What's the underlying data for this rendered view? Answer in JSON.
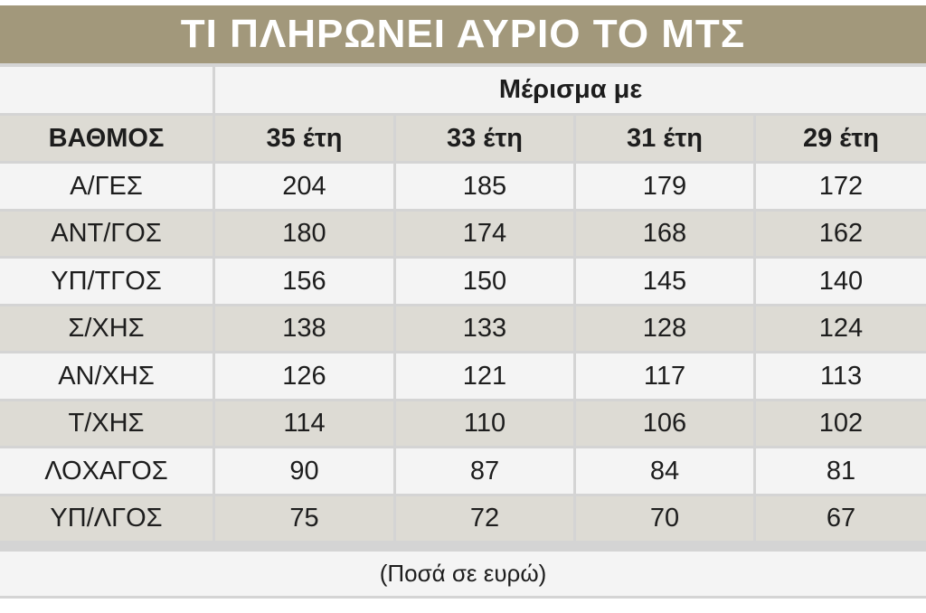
{
  "title": "ΤΙ ΠΛΗΡΩΝΕΙ ΑΥΡΙΟ ΤΟ ΜΤΣ",
  "group_header": "Μέρισμα με",
  "note": "(Ποσά σε ευρώ)",
  "chart_data": {
    "type": "table",
    "title": "ΤΙ ΠΛΗΡΩΝΕΙ ΑΥΡΙΟ ΤΟ ΜΤΣ",
    "row_header": "ΒΑΘΜΟΣ",
    "columns": [
      "35 έτη",
      "33 έτη",
      "31 έτη",
      "29 έτη"
    ],
    "rows": [
      {
        "label": "Α/ΓΕΣ",
        "values": [
          "204",
          "185",
          "179",
          "172"
        ]
      },
      {
        "label": "ΑΝΤ/ΓΟΣ",
        "values": [
          "180",
          "174",
          "168",
          "162"
        ]
      },
      {
        "label": "ΥΠ/ΤΓΟΣ",
        "values": [
          "156",
          "150",
          "145",
          "140"
        ]
      },
      {
        "label": "Σ/ΧΗΣ",
        "values": [
          "138",
          "133",
          "128",
          "124"
        ]
      },
      {
        "label": "ΑΝ/ΧΗΣ",
        "values": [
          "126",
          "121",
          "117",
          "113"
        ]
      },
      {
        "label": "Τ/ΧΗΣ",
        "values": [
          "114",
          "110",
          "106",
          "102"
        ]
      },
      {
        "label": "ΛΟΧΑΓΟΣ",
        "values": [
          "90",
          "87",
          "84",
          "81"
        ]
      },
      {
        "label": "ΥΠ/ΛΓΟΣ",
        "values": [
          "75",
          "72",
          "70",
          "67"
        ]
      }
    ],
    "colors": {
      "title_bg": "#a2987b",
      "header_bg": "#dddbd4",
      "row_alt_bg": "#dddbd4",
      "row_bg": "#f4f4f4",
      "grid": "#d4d4d4"
    }
  }
}
